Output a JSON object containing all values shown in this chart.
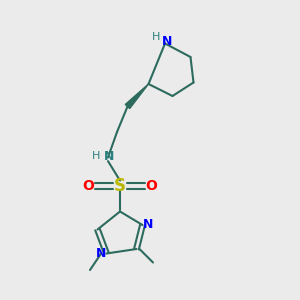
{
  "bg_color": "#ebebeb",
  "atom_colors": {
    "C": "#2d6b5e",
    "N": "#0000ff",
    "NH_teal": "#2d8080",
    "S": "#b8b800",
    "O": "#ff0000",
    "H": "#2d8080"
  },
  "bond_color": "#2d6b5e",
  "figsize": [
    3.0,
    3.0
  ],
  "dpi": 100
}
